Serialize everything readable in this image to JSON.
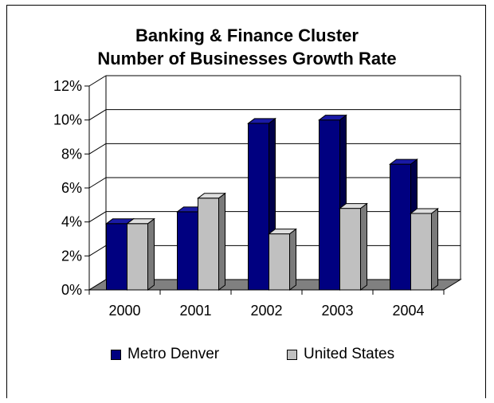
{
  "chart_data": {
    "type": "bar",
    "title_lines": [
      "Banking & Finance Cluster",
      "Number of Businesses Growth Rate"
    ],
    "categories": [
      "2000",
      "2001",
      "2002",
      "2003",
      "2004"
    ],
    "series": [
      {
        "name": "Metro Denver",
        "values": [
          3.9,
          4.6,
          9.8,
          10.0,
          7.4
        ],
        "color": "#000080",
        "side_color": "#00004a",
        "top_color": "#1a1aa6"
      },
      {
        "name": "United States",
        "values": [
          3.9,
          5.4,
          3.3,
          4.8,
          4.5
        ],
        "color": "#c0c0c0",
        "side_color": "#7a7a7a",
        "top_color": "#dedede"
      }
    ],
    "ylim": [
      0,
      12
    ],
    "yticks": [
      0,
      2,
      4,
      6,
      8,
      10,
      12
    ],
    "ytick_labels": [
      "0%",
      "2%",
      "4%",
      "6%",
      "8%",
      "10%",
      "12%"
    ],
    "grid": true,
    "legend_position": "bottom",
    "floor_color": "#808080"
  }
}
